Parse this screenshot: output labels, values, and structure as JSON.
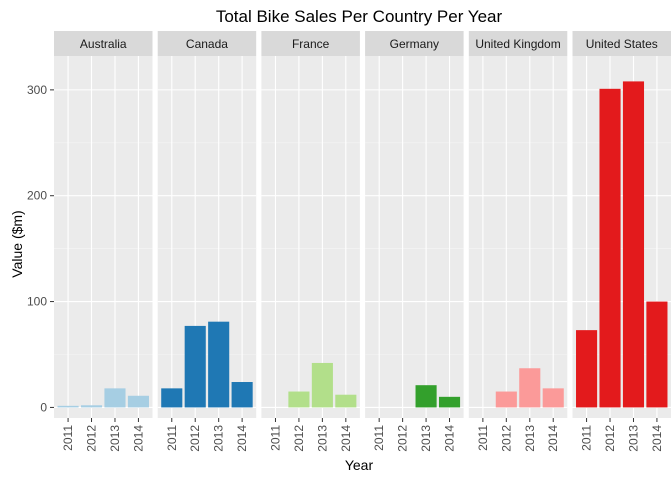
{
  "chart_data": {
    "type": "bar",
    "title": "Total Bike Sales Per Country Per Year",
    "xlabel": "Year",
    "ylabel": "Value ($m)",
    "x": [
      "2011",
      "2012",
      "2013",
      "2014"
    ],
    "ylim": [
      -10,
      332
    ],
    "y_ticks": [
      0,
      100,
      200,
      300
    ],
    "y_tick_labels": [
      "0",
      "100",
      "200",
      "300"
    ],
    "grid": true,
    "legend": "none",
    "facets": [
      {
        "name": "Australia",
        "color": "#a6cee3",
        "values": [
          1.5,
          2,
          18,
          11
        ]
      },
      {
        "name": "Canada",
        "color": "#1f78b4",
        "values": [
          18,
          77,
          81,
          24
        ]
      },
      {
        "name": "France",
        "color": "#b2df8a",
        "values": [
          0,
          15,
          42,
          12
        ]
      },
      {
        "name": "Germany",
        "color": "#33a02c",
        "values": [
          0,
          0,
          21,
          10
        ]
      },
      {
        "name": "United Kingdom",
        "color": "#fb9a99",
        "values": [
          0,
          15,
          37,
          18
        ]
      },
      {
        "name": "United States",
        "color": "#e31a1c",
        "values": [
          73,
          301,
          308,
          100
        ]
      }
    ]
  }
}
